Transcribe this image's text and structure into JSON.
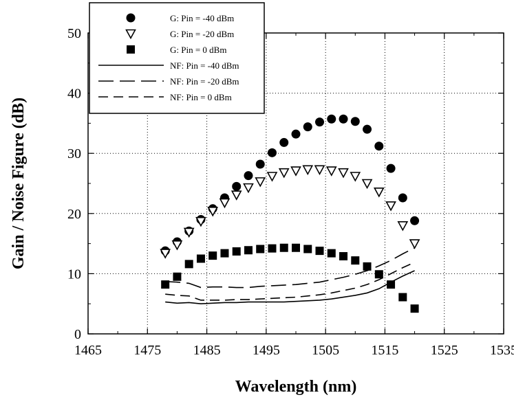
{
  "chart_data": {
    "type": "scatter",
    "xlabel": "Wavelength (nm)",
    "ylabel": "Gain / Noise Figure (dB)",
    "xlim": [
      1465,
      1535
    ],
    "ylim": [
      0,
      50
    ],
    "xticks": [
      1465,
      1475,
      1485,
      1495,
      1505,
      1515,
      1525,
      1535
    ],
    "yticks": [
      0,
      10,
      20,
      30,
      40,
      50
    ],
    "grid": true,
    "legend": "top-left",
    "series": [
      {
        "name": "G: Pin = -40 dBm",
        "kind": "marker",
        "marker": "circle",
        "x": [
          1478,
          1480,
          1482,
          1484,
          1486,
          1488,
          1490,
          1492,
          1494,
          1496,
          1498,
          1500,
          1502,
          1504,
          1506,
          1508,
          1510,
          1512,
          1514,
          1516,
          1518,
          1520
        ],
        "y": [
          13.8,
          15.3,
          17.1,
          19.0,
          20.8,
          22.6,
          24.5,
          26.3,
          28.2,
          30.1,
          31.8,
          33.2,
          34.4,
          35.2,
          35.7,
          35.7,
          35.3,
          34.0,
          31.2,
          27.5,
          22.6,
          18.8
        ]
      },
      {
        "name": "G: Pin = -20 dBm",
        "kind": "marker",
        "marker": "triangle-down",
        "x": [
          1478,
          1480,
          1482,
          1484,
          1486,
          1488,
          1490,
          1492,
          1494,
          1496,
          1498,
          1500,
          1502,
          1504,
          1506,
          1508,
          1510,
          1512,
          1514,
          1516,
          1518,
          1520
        ],
        "y": [
          13.4,
          14.8,
          16.9,
          18.7,
          20.4,
          21.8,
          23.1,
          24.3,
          25.3,
          26.2,
          26.8,
          27.1,
          27.3,
          27.3,
          27.1,
          26.8,
          26.2,
          25.0,
          23.6,
          21.3,
          18.0,
          15.0
        ]
      },
      {
        "name": "G: Pin = 0 dBm",
        "kind": "marker",
        "marker": "square",
        "x": [
          1478,
          1480,
          1482,
          1484,
          1486,
          1488,
          1490,
          1492,
          1494,
          1496,
          1498,
          1500,
          1502,
          1504,
          1506,
          1508,
          1510,
          1512,
          1514,
          1516,
          1518,
          1520
        ],
        "y": [
          8.2,
          9.5,
          11.6,
          12.5,
          13.0,
          13.4,
          13.7,
          13.9,
          14.1,
          14.2,
          14.3,
          14.3,
          14.1,
          13.8,
          13.4,
          12.9,
          12.2,
          11.2,
          9.9,
          8.2,
          6.1,
          4.2
        ]
      },
      {
        "name": "NF: Pin = -40 dBm",
        "kind": "line",
        "dash": "solid",
        "x": [
          1478,
          1480,
          1482,
          1484,
          1486,
          1488,
          1490,
          1492,
          1494,
          1496,
          1498,
          1500,
          1502,
          1504,
          1506,
          1508,
          1510,
          1512,
          1514,
          1516,
          1518,
          1520
        ],
        "y": [
          5.3,
          5.1,
          5.2,
          5.0,
          5.1,
          5.2,
          5.2,
          5.3,
          5.3,
          5.3,
          5.3,
          5.4,
          5.5,
          5.6,
          5.8,
          6.1,
          6.4,
          6.8,
          7.5,
          8.6,
          9.6,
          10.5
        ]
      },
      {
        "name": "NF: Pin = -20 dBm",
        "kind": "line",
        "dash": "long",
        "x": [
          1478,
          1480,
          1482,
          1484,
          1486,
          1488,
          1490,
          1492,
          1494,
          1496,
          1498,
          1500,
          1502,
          1504,
          1506,
          1508,
          1510,
          1512,
          1514,
          1516,
          1518,
          1520
        ],
        "y": [
          8.7,
          8.6,
          8.4,
          7.7,
          7.8,
          7.8,
          7.7,
          7.7,
          7.9,
          8.0,
          8.1,
          8.2,
          8.4,
          8.6,
          9.0,
          9.4,
          9.9,
          10.5,
          11.3,
          12.2,
          13.3,
          14.3
        ]
      },
      {
        "name": "NF: Pin = 0 dBm",
        "kind": "line",
        "dash": "short",
        "x": [
          1478,
          1480,
          1482,
          1484,
          1486,
          1488,
          1490,
          1492,
          1494,
          1496,
          1498,
          1500,
          1502,
          1504,
          1506,
          1508,
          1510,
          1512,
          1514,
          1516,
          1518,
          1520
        ],
        "y": [
          6.6,
          6.4,
          6.3,
          5.6,
          5.6,
          5.6,
          5.7,
          5.7,
          5.8,
          5.9,
          6.0,
          6.1,
          6.3,
          6.5,
          6.8,
          7.2,
          7.6,
          8.2,
          9.0,
          10.0,
          11.0,
          11.9
        ]
      }
    ]
  }
}
